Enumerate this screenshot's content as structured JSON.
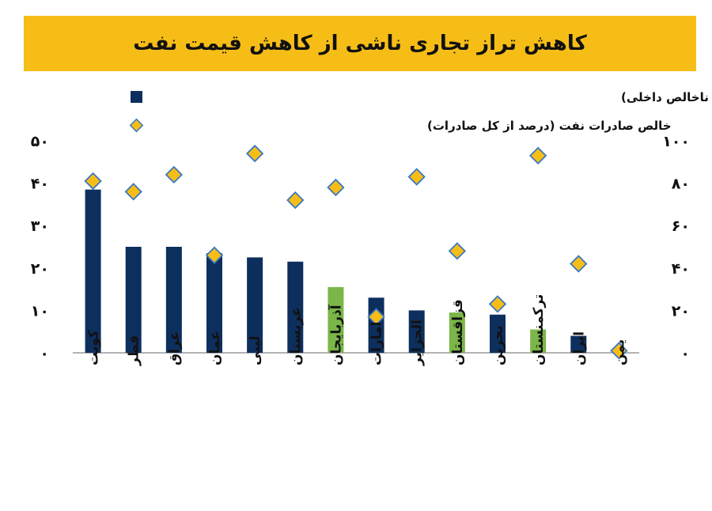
{
  "chart_data": {
    "type": "bar",
    "title": "کاهش تراز تجاری ناشی از کاهش قیمت نفت",
    "categories": [
      "کویت",
      "قطر",
      "عراق",
      "عمان",
      "لیبی",
      "عربستان",
      "آذربایجان",
      "امارات",
      "الجزایر",
      "قزاقستان",
      "بحرین",
      "ترکمنستان",
      "ایران",
      "یمن"
    ],
    "series": [
      {
        "name": "کاهش تراز تجاری ناشی از کاهش قیمت نفت(درصد از تولید ناخالص داخلی)",
        "type": "bar",
        "axis": "left",
        "values": [
          38.5,
          25,
          25,
          23.5,
          22.5,
          21.5,
          15.5,
          13,
          10,
          9.5,
          9,
          5.5,
          4,
          0
        ],
        "colors": [
          "#0d2f5e",
          "#0d2f5e",
          "#0d2f5e",
          "#0d2f5e",
          "#0d2f5e",
          "#0d2f5e",
          "#7ab648",
          "#0d2f5e",
          "#0d2f5e",
          "#7ab648",
          "#0d2f5e",
          "#7ab648",
          "#0d2f5e",
          "#0d2f5e"
        ]
      },
      {
        "name": "خالص صادرات نفت (درصد از کل صادرات)",
        "type": "scatter",
        "axis": "right",
        "marker": "diamond",
        "values": [
          81,
          76,
          84,
          46,
          94,
          72,
          78,
          17,
          83,
          48,
          23,
          93,
          42,
          1
        ]
      }
    ],
    "y_left": {
      "min": 0,
      "max": 50,
      "ticks": [
        "۰",
        "۱۰",
        "۲۰",
        "۳۰",
        "۴۰",
        "۵۰"
      ]
    },
    "y_right": {
      "min": 0,
      "max": 100,
      "ticks": [
        "۰",
        "۲۰",
        "۴۰",
        "۶۰",
        "۸۰",
        "۱۰۰"
      ]
    },
    "legend_position": "top",
    "grid": false,
    "colors": {
      "primary_bar": "#0d2f5e",
      "highlight_bar": "#7ab648",
      "diamond_fill": "#f7bd17",
      "diamond_stroke": "#3a78c2",
      "title_bg": "#f7bd17"
    }
  }
}
